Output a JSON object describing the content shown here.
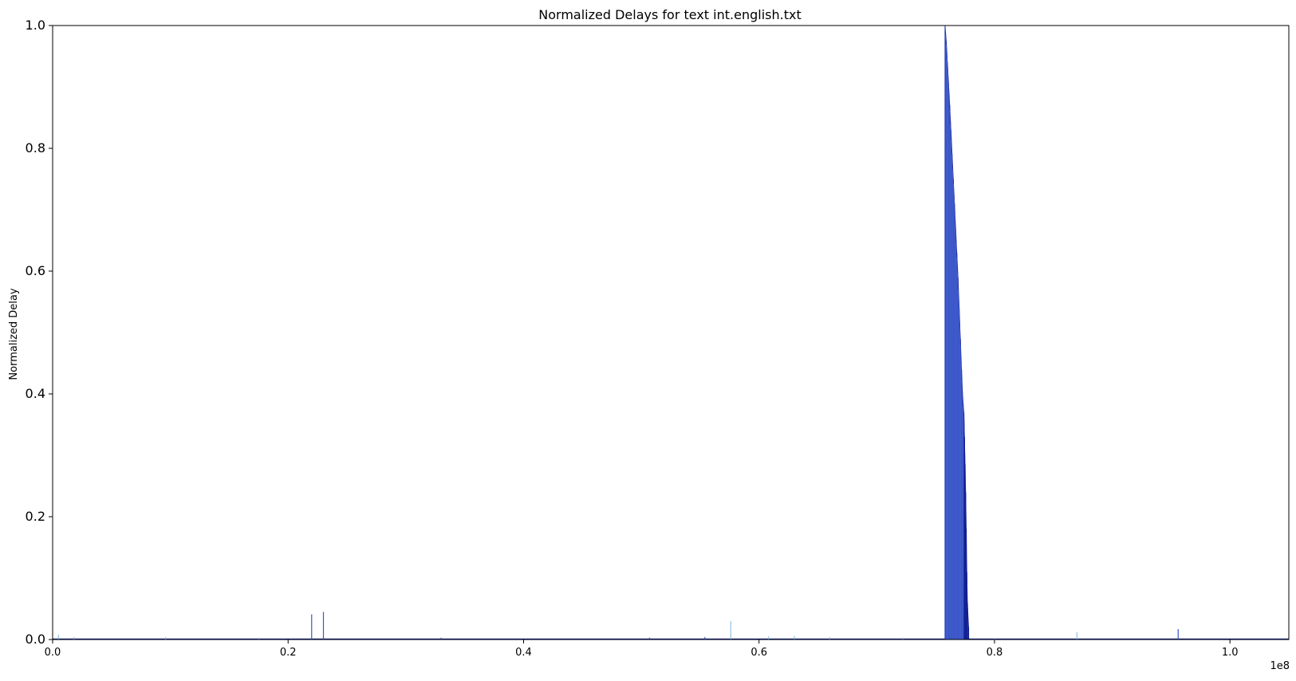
{
  "chart_data": {
    "type": "area",
    "title": "Normalized Delays for text int.english.txt",
    "xlabel": "",
    "ylabel": "Normalized Delay",
    "x_offset_label": "1e8",
    "xlim": [
      0,
      105000000
    ],
    "ylim": [
      0,
      1.0
    ],
    "xticks": [
      0,
      20000000,
      40000000,
      60000000,
      80000000,
      100000000
    ],
    "xtick_labels": [
      "0.0",
      "0.2",
      "0.4",
      "0.6",
      "0.8",
      "1.0"
    ],
    "yticks": [
      0,
      0.2,
      0.4,
      0.6,
      0.8,
      1.0
    ],
    "ytick_labels": [
      "0.0",
      "0.2",
      "0.4",
      "0.6",
      "0.8",
      "1.0"
    ],
    "grid": false,
    "legend": "none",
    "colors": {
      "dark": "#0d1a8c",
      "mid": "#3a56c8",
      "light": "#8fc3e8",
      "axis": "#000000"
    },
    "series": [
      {
        "values": [
          [
            500000,
            0.008
          ],
          [
            1800000,
            0.004
          ],
          [
            9600000,
            0.004
          ],
          [
            17500000,
            0.003
          ],
          [
            22000000,
            0.041
          ],
          [
            23000000,
            0.045
          ],
          [
            33000000,
            0.003
          ],
          [
            50700000,
            0.003
          ],
          [
            55400000,
            0.004
          ],
          [
            57600000,
            0.03
          ],
          [
            60800000,
            0.005
          ],
          [
            63000000,
            0.006
          ],
          [
            66000000,
            0.004
          ],
          [
            72200000,
            0.003
          ],
          [
            75800000,
            1.0
          ],
          [
            75900000,
            0.975
          ],
          [
            76000000,
            0.94
          ],
          [
            76100000,
            0.905
          ],
          [
            76200000,
            0.87
          ],
          [
            76300000,
            0.83
          ],
          [
            76400000,
            0.79
          ],
          [
            76500000,
            0.75
          ],
          [
            76600000,
            0.71
          ],
          [
            76700000,
            0.67
          ],
          [
            76800000,
            0.63
          ],
          [
            76900000,
            0.59
          ],
          [
            77000000,
            0.54
          ],
          [
            77100000,
            0.49
          ],
          [
            77200000,
            0.44
          ],
          [
            77300000,
            0.395
          ],
          [
            77400000,
            0.37
          ],
          [
            77450000,
            0.33
          ],
          [
            77500000,
            0.285
          ],
          [
            77550000,
            0.24
          ],
          [
            77600000,
            0.18
          ],
          [
            77650000,
            0.11
          ],
          [
            77700000,
            0.06
          ],
          [
            77800000,
            0.02
          ],
          [
            80000000,
            0.002
          ],
          [
            87000000,
            0.012
          ],
          [
            95600000,
            0.017
          ]
        ]
      }
    ]
  }
}
